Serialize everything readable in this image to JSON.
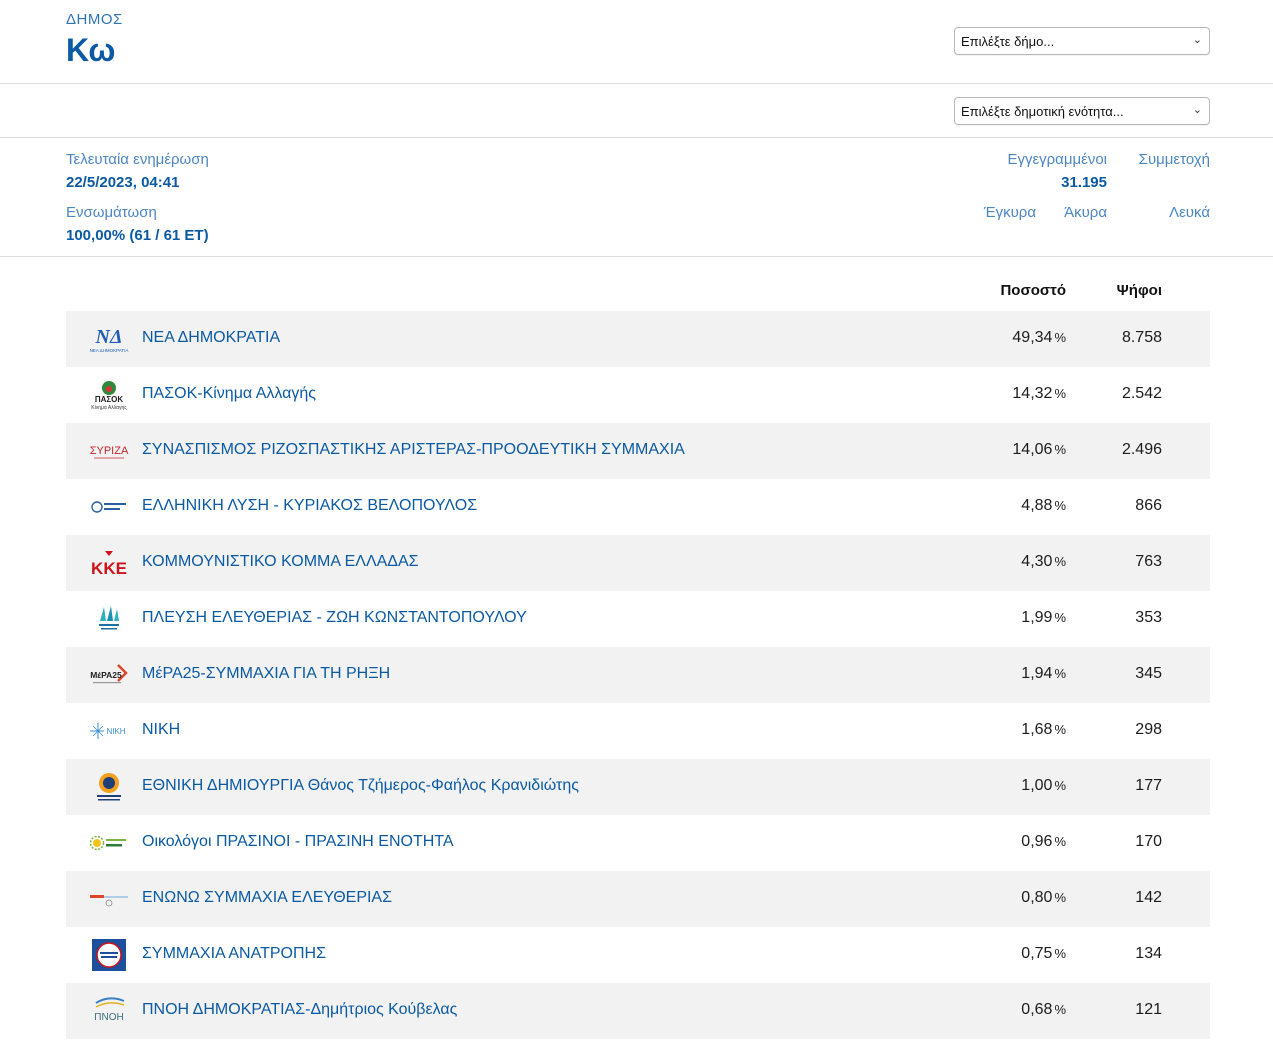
{
  "header": {
    "label": "ΔΗΜΟΣ",
    "name": "Κω",
    "municipality_select": "Επιλέξτε δήμο...",
    "unit_select": "Επιλέξτε δημοτική ενότητα..."
  },
  "stats": {
    "last_update_label": "Τελευταία ενημέρωση",
    "last_update_value": "22/5/2023, 04:41",
    "integration_label": "Ενσωμάτωση",
    "integration_value": "100,00% (61 / 61 ΕΤ)",
    "registered_label": "Εγγεγραμμένοι",
    "registered_value": "31.195",
    "turnout_label": "Συμμετοχή",
    "valid_label": "Έγκυρα",
    "invalid_label": "Άκυρα",
    "blank_label": "Λευκά"
  },
  "table": {
    "col_percent": "Ποσοστό",
    "col_votes": "Ψήφοι",
    "percent_unit": "%",
    "rows": [
      {
        "party": "ΝΕΑ ΔΗΜΟΚΡΑΤΙΑ",
        "percent": "49,34",
        "votes": "8.758",
        "logo": "nd-logo"
      },
      {
        "party": "ΠΑΣΟΚ-Κίνημα Αλλαγής",
        "percent": "14,32",
        "votes": "2.542",
        "logo": "pasok-logo"
      },
      {
        "party": "ΣΥΝΑΣΠΙΣΜΟΣ ΡΙΖΟΣΠΑΣΤΙΚΗΣ ΑΡΙΣΤΕΡΑΣ-ΠΡΟΟΔΕΥΤΙΚΗ ΣΥΜΜΑΧΙΑ",
        "percent": "14,06",
        "votes": "2.496",
        "logo": "syriza-logo"
      },
      {
        "party": "ΕΛΛΗΝΙΚΗ ΛΥΣΗ - ΚΥΡΙΑΚΟΣ ΒΕΛΟΠΟΥΛΟΣ",
        "percent": "4,88",
        "votes": "866",
        "logo": "elliniki-lysi-logo"
      },
      {
        "party": "ΚΟΜΜΟΥΝΙΣΤΙΚΟ ΚΟΜΜΑ ΕΛΛΑΔΑΣ",
        "percent": "4,30",
        "votes": "763",
        "logo": "kke-logo"
      },
      {
        "party": "ΠΛΕΥΣΗ ΕΛΕΥΘΕΡΙΑΣ - ΖΩΗ ΚΩΝΣΤΑΝΤΟΠΟΥΛΟΥ",
        "percent": "1,99",
        "votes": "353",
        "logo": "plefsi-logo"
      },
      {
        "party": "ΜέΡΑ25-ΣΥΜΜΑΧΙΑ ΓΙΑ ΤΗ ΡΗΞΗ",
        "percent": "1,94",
        "votes": "345",
        "logo": "mera25-logo"
      },
      {
        "party": "ΝΙΚΗ",
        "percent": "1,68",
        "votes": "298",
        "logo": "niki-logo"
      },
      {
        "party": "ΕΘΝΙΚΗ ΔΗΜΙΟΥΡΓΙΑ Θάνος Τζήμερος-Φαήλος Κρανιδιώτης",
        "percent": "1,00",
        "votes": "177",
        "logo": "ethniki-dimiourgia-logo"
      },
      {
        "party": "Οικολόγοι ΠΡΑΣΙΝΟΙ - ΠΡΑΣΙΝΗ ΕΝΟΤΗΤΑ",
        "percent": "0,96",
        "votes": "170",
        "logo": "prasinoi-logo"
      },
      {
        "party": "ΕΝΩΝΩ ΣΥΜΜΑΧΙΑ ΕΛΕΥΘΕΡΙΑΣ",
        "percent": "0,80",
        "votes": "142",
        "logo": "enono-logo"
      },
      {
        "party": "ΣΥΜΜΑΧΙΑ ΑΝΑΤΡΟΠΗΣ",
        "percent": "0,75",
        "votes": "134",
        "logo": "anatropi-logo"
      },
      {
        "party": "ΠΝΟΗ ΔΗΜΟΚΡΑΤΙΑΣ-Δημήτριος Κούβελας",
        "percent": "0,68",
        "votes": "121",
        "logo": "pnoi-logo"
      }
    ]
  },
  "logo_text": {
    "nd_main": "ΝΔ",
    "nd_sub": "ΝΕΑ ΔΗΜΟΚΡΑΤΙΑ",
    "pasok_main": "ΠΑΣΟΚ",
    "pasok_sub": "Κίνημα Αλλαγής",
    "syriza": "ΣΥΡΙΖΑ",
    "kke": "ΚΚΕ",
    "mera25": "ΜέΡΑ25",
    "niki": "ΝΙΚΗ",
    "pnoi": "ΠΝΟΗ"
  },
  "colors": {
    "accent": "#0b5aa3",
    "label": "#4d86c1",
    "row_alt": "#f2f2f2"
  }
}
